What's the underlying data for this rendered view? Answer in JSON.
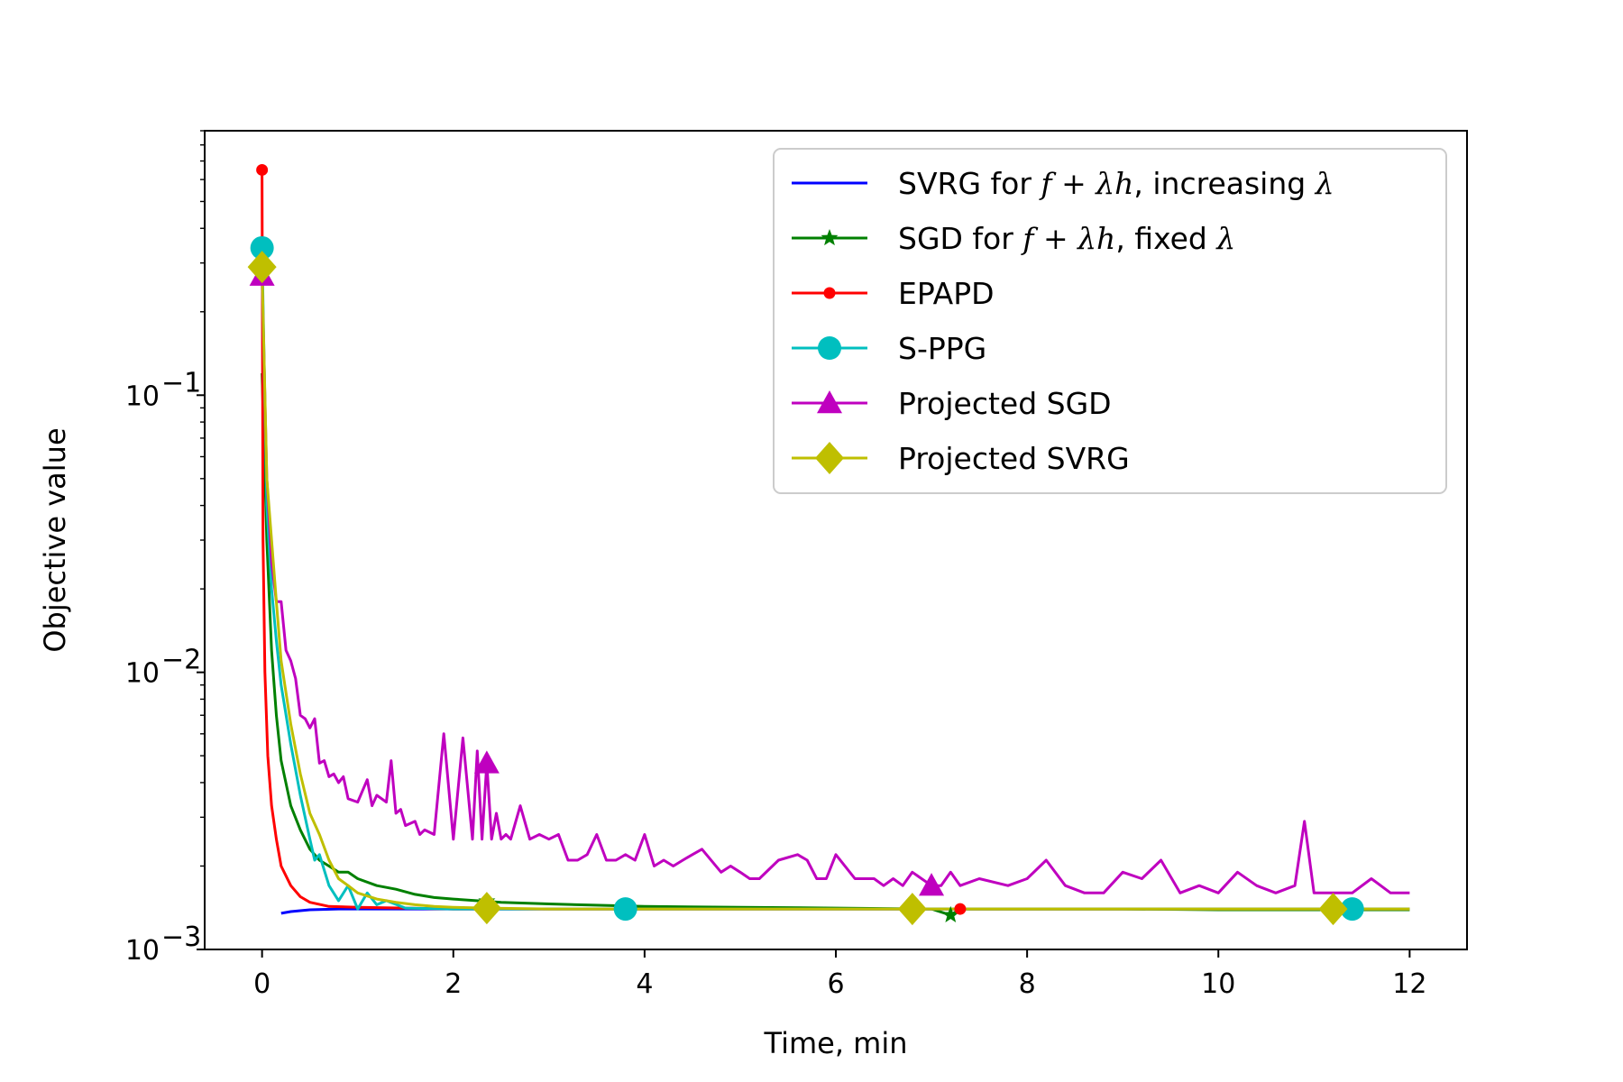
{
  "chart_data": {
    "type": "line",
    "title": "",
    "xlabel": "Time, min",
    "ylabel": "Objective value",
    "xscale": "linear",
    "yscale": "log",
    "xlim": [
      -0.6,
      12.6
    ],
    "ylim": [
      0.001,
      0.9
    ],
    "xticks": [
      0,
      2,
      4,
      6,
      8,
      10,
      12
    ],
    "xtick_labels": [
      "0",
      "2",
      "4",
      "6",
      "8",
      "10",
      "12"
    ],
    "yticks": [
      0.001,
      0.01,
      0.1
    ],
    "ytick_labels": [
      {
        "base": "10",
        "exp": "−3"
      },
      {
        "base": "10",
        "exp": "−2"
      },
      {
        "base": "10",
        "exp": "−1"
      }
    ],
    "legend_position": "top-right",
    "series": [
      {
        "name": "SVRG for f + λh, increasing λ",
        "color": "#0000ff",
        "marker": "none",
        "x": [
          0.2,
          0.3,
          0.5,
          0.8,
          1.2,
          2,
          4,
          6,
          8,
          10,
          12
        ],
        "y": [
          0.00135,
          0.00137,
          0.00139,
          0.0014,
          0.0014,
          0.0014,
          0.0014,
          0.0014,
          0.0014,
          0.0014,
          0.0014
        ],
        "marker_x": []
      },
      {
        "name": "SGD for f + λh, fixed λ",
        "color": "#008000",
        "marker": "star",
        "x": [
          0,
          0.05,
          0.1,
          0.15,
          0.2,
          0.3,
          0.4,
          0.5,
          0.6,
          0.7,
          0.8,
          0.9,
          1.0,
          1.2,
          1.4,
          1.6,
          1.8,
          2.0,
          2.5,
          3,
          4,
          5,
          6,
          7,
          7.2,
          7.3,
          8,
          9,
          10,
          11,
          12
        ],
        "y": [
          0.12,
          0.03,
          0.012,
          0.007,
          0.0048,
          0.0033,
          0.0027,
          0.0023,
          0.0021,
          0.002,
          0.0019,
          0.0019,
          0.0018,
          0.0017,
          0.00165,
          0.00158,
          0.00154,
          0.00152,
          0.00148,
          0.00146,
          0.00143,
          0.00142,
          0.00141,
          0.0014,
          0.00133,
          0.0014,
          0.0014,
          0.0014,
          0.00139,
          0.00139,
          0.00139
        ],
        "marker_x": [
          2.35,
          7.2
        ]
      },
      {
        "name": "EPAPD",
        "color": "#ff0000",
        "marker": "dot",
        "x": [
          0,
          0.01,
          0.03,
          0.06,
          0.1,
          0.15,
          0.2,
          0.3,
          0.4,
          0.5,
          0.7,
          1,
          1.5,
          2,
          3,
          4,
          6,
          8,
          10,
          12
        ],
        "y": [
          0.65,
          0.03,
          0.01,
          0.005,
          0.0033,
          0.0025,
          0.002,
          0.0017,
          0.00155,
          0.00148,
          0.00143,
          0.00142,
          0.00141,
          0.0014,
          0.0014,
          0.0014,
          0.0014,
          0.0014,
          0.0014,
          0.0014
        ],
        "marker_x": [
          0,
          2.4,
          7.3
        ]
      },
      {
        "name": "S-PPG",
        "color": "#00bfbf",
        "marker": "circle",
        "x": [
          0,
          0.05,
          0.1,
          0.15,
          0.2,
          0.3,
          0.4,
          0.5,
          0.55,
          0.6,
          0.7,
          0.8,
          0.9,
          1.0,
          1.1,
          1.2,
          1.3,
          1.5,
          2,
          3,
          4,
          6,
          8,
          10,
          11.4,
          12
        ],
        "y": [
          0.34,
          0.04,
          0.02,
          0.013,
          0.009,
          0.0055,
          0.0036,
          0.0025,
          0.0021,
          0.0022,
          0.0017,
          0.0015,
          0.0017,
          0.0014,
          0.0016,
          0.00145,
          0.0015,
          0.00141,
          0.0014,
          0.0014,
          0.0014,
          0.0014,
          0.0014,
          0.0014,
          0.0014,
          0.0014
        ],
        "marker_x": [
          0,
          3.8,
          11.4
        ]
      },
      {
        "name": "Projected SGD",
        "color": "#bf00bf",
        "marker": "triangle",
        "x": [
          0,
          0.05,
          0.1,
          0.15,
          0.2,
          0.25,
          0.3,
          0.35,
          0.4,
          0.45,
          0.5,
          0.55,
          0.6,
          0.65,
          0.7,
          0.75,
          0.8,
          0.85,
          0.9,
          1.0,
          1.1,
          1.15,
          1.2,
          1.3,
          1.35,
          1.4,
          1.45,
          1.5,
          1.6,
          1.65,
          1.7,
          1.8,
          1.9,
          2.0,
          2.1,
          2.2,
          2.25,
          2.3,
          2.35,
          2.4,
          2.45,
          2.5,
          2.55,
          2.6,
          2.7,
          2.8,
          2.9,
          3.0,
          3.1,
          3.2,
          3.3,
          3.4,
          3.5,
          3.6,
          3.7,
          3.8,
          3.9,
          4.0,
          4.1,
          4.2,
          4.3,
          4.4,
          4.5,
          4.6,
          4.8,
          4.9,
          5.0,
          5.1,
          5.2,
          5.4,
          5.6,
          5.7,
          5.8,
          5.9,
          6.0,
          6.2,
          6.4,
          6.5,
          6.6,
          6.7,
          6.8,
          7.0,
          7.1,
          7.2,
          7.3,
          7.5,
          7.8,
          8.0,
          8.2,
          8.4,
          8.6,
          8.8,
          9.0,
          9.2,
          9.4,
          9.6,
          9.8,
          10.0,
          10.2,
          10.4,
          10.6,
          10.8,
          10.9,
          11.0,
          11.2,
          11.4,
          11.6,
          11.8,
          12.0
        ],
        "y": [
          0.27,
          0.05,
          0.025,
          0.018,
          0.018,
          0.012,
          0.011,
          0.0095,
          0.007,
          0.0068,
          0.0063,
          0.0068,
          0.0047,
          0.0048,
          0.0042,
          0.0043,
          0.004,
          0.0042,
          0.0035,
          0.0034,
          0.0041,
          0.0033,
          0.0036,
          0.0034,
          0.0048,
          0.0031,
          0.0032,
          0.0028,
          0.0029,
          0.0026,
          0.0027,
          0.0026,
          0.006,
          0.0025,
          0.0058,
          0.0025,
          0.0052,
          0.0025,
          0.0047,
          0.0025,
          0.0031,
          0.0025,
          0.0026,
          0.0025,
          0.0033,
          0.0025,
          0.0026,
          0.0025,
          0.0026,
          0.0021,
          0.0021,
          0.0022,
          0.0026,
          0.0021,
          0.0021,
          0.0022,
          0.0021,
          0.0026,
          0.002,
          0.0021,
          0.002,
          0.0021,
          0.0022,
          0.0023,
          0.0019,
          0.002,
          0.0019,
          0.0018,
          0.0018,
          0.0021,
          0.0022,
          0.0021,
          0.0018,
          0.0018,
          0.0022,
          0.0018,
          0.0018,
          0.0017,
          0.0018,
          0.0017,
          0.0019,
          0.0017,
          0.0017,
          0.0019,
          0.0017,
          0.0018,
          0.0017,
          0.0018,
          0.0021,
          0.0017,
          0.0016,
          0.0016,
          0.0019,
          0.0018,
          0.0021,
          0.0016,
          0.0017,
          0.0016,
          0.0019,
          0.0017,
          0.0016,
          0.0017,
          0.0029,
          0.0016,
          0.0016,
          0.0016,
          0.0018,
          0.0016,
          0.0016
        ],
        "marker_x": [
          0,
          2.35,
          7.0
        ]
      },
      {
        "name": "Projected SVRG",
        "color": "#bfbf00",
        "marker": "diamond",
        "x": [
          0,
          0.05,
          0.1,
          0.15,
          0.2,
          0.3,
          0.4,
          0.5,
          0.6,
          0.7,
          0.8,
          0.9,
          1.0,
          1.2,
          1.4,
          1.6,
          1.8,
          2.0,
          2.35,
          3,
          4,
          6,
          6.8,
          8,
          10,
          11.2,
          12
        ],
        "y": [
          0.29,
          0.05,
          0.03,
          0.018,
          0.011,
          0.0065,
          0.0043,
          0.0031,
          0.0026,
          0.0021,
          0.0018,
          0.0017,
          0.0016,
          0.00152,
          0.00148,
          0.00145,
          0.00143,
          0.00142,
          0.00141,
          0.0014,
          0.0014,
          0.0014,
          0.0014,
          0.0014,
          0.0014,
          0.0014,
          0.0014
        ],
        "marker_x": [
          0,
          2.35,
          6.8,
          11.2
        ]
      }
    ]
  },
  "legend": [
    {
      "pre": "SVRG for ",
      "math": "f + λh",
      "post": ", increasing ",
      "math2": "λ"
    },
    {
      "pre": "SGD for ",
      "math": "f + λh",
      "post": ", fixed ",
      "math2": "λ"
    },
    {
      "pre": "EPAPD",
      "math": "",
      "post": "",
      "math2": ""
    },
    {
      "pre": "S-PPG",
      "math": "",
      "post": "",
      "math2": ""
    },
    {
      "pre": "Projected SGD",
      "math": "",
      "post": "",
      "math2": ""
    },
    {
      "pre": "Projected SVRG",
      "math": "",
      "post": "",
      "math2": ""
    }
  ]
}
